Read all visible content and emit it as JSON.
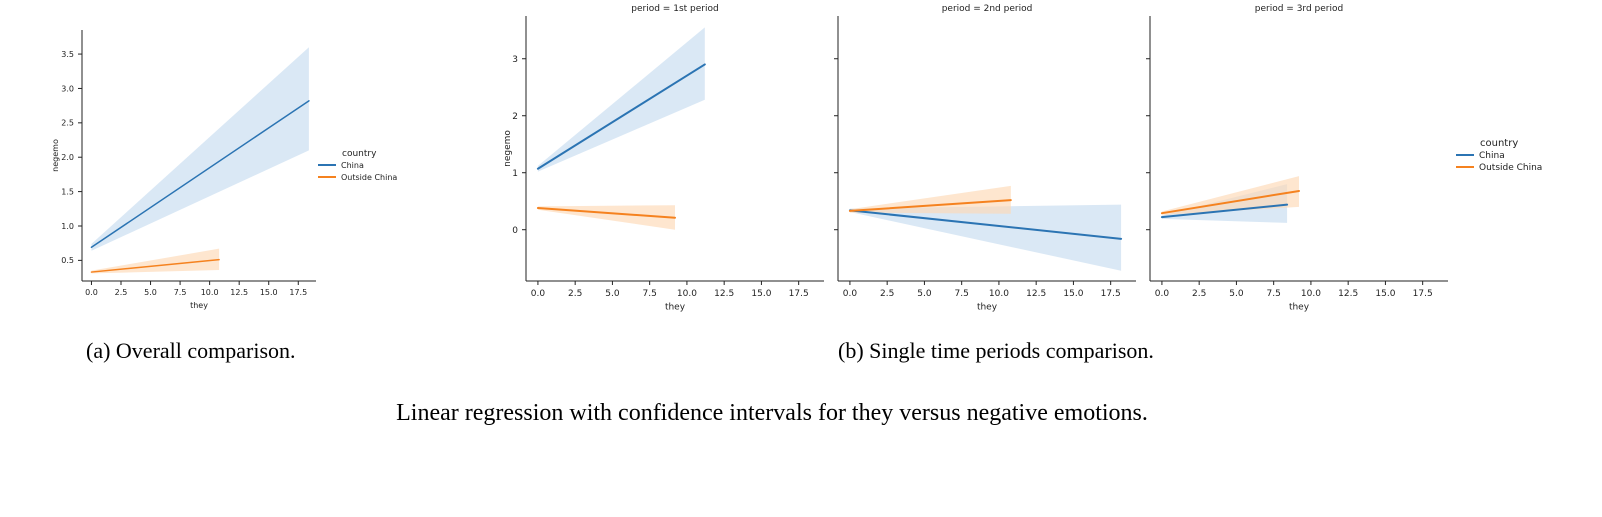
{
  "colors": {
    "china": "#2b74b3",
    "outside": "#f5821f",
    "china_band": "#c6dbef",
    "outside_band": "#fdd9b5"
  },
  "chart_data": [
    {
      "type": "line",
      "panel_id": "overall",
      "title": "",
      "xlabel": "they",
      "ylabel": "negemo",
      "xlim": [
        -0.8,
        19.0
      ],
      "ylim": [
        0.2,
        3.85
      ],
      "xticks": [
        0.0,
        2.5,
        5.0,
        7.5,
        10.0,
        12.5,
        15.0,
        17.5
      ],
      "xtick_labels": [
        "0.0",
        "2.5",
        "5.0",
        "7.5",
        "10.0",
        "12.5",
        "15.0",
        "17.5"
      ],
      "yticks": [
        0.5,
        1.0,
        1.5,
        2.0,
        2.5,
        3.0,
        3.5
      ],
      "ytick_labels": [
        "0.5",
        "1.0",
        "1.5",
        "2.0",
        "2.5",
        "3.0",
        "3.5"
      ],
      "legend": {
        "title": "country",
        "placement": "right",
        "entries": [
          "China",
          "Outside China"
        ]
      },
      "series": [
        {
          "name": "China",
          "x": [
            0.0,
            18.4
          ],
          "y": [
            0.69,
            2.82
          ],
          "ci_low": [
            0.64,
            2.1
          ],
          "ci_high": [
            0.74,
            3.6
          ]
        },
        {
          "name": "Outside China",
          "x": [
            0.0,
            10.8
          ],
          "y": [
            0.33,
            0.51
          ],
          "ci_low": [
            0.31,
            0.36
          ],
          "ci_high": [
            0.35,
            0.67
          ]
        }
      ]
    },
    {
      "type": "line",
      "panel_id": "p1",
      "title": "period = 1st period",
      "xlabel": "they",
      "ylabel": "negemo",
      "xlim": [
        -0.8,
        19.2
      ],
      "ylim": [
        -0.9,
        3.75
      ],
      "xticks": [
        0.0,
        2.5,
        5.0,
        7.5,
        10.0,
        12.5,
        15.0,
        17.5
      ],
      "xtick_labels": [
        "0.0",
        "2.5",
        "5.0",
        "7.5",
        "10.0",
        "12.5",
        "15.0",
        "17.5"
      ],
      "yticks": [
        0,
        1,
        2,
        3
      ],
      "ytick_labels": [
        "0",
        "1",
        "2",
        "3"
      ],
      "series": [
        {
          "name": "China",
          "x": [
            0.0,
            11.2
          ],
          "y": [
            1.07,
            2.9
          ],
          "ci_low": [
            1.02,
            2.28
          ],
          "ci_high": [
            1.12,
            3.55
          ]
        },
        {
          "name": "Outside China",
          "x": [
            0.0,
            9.2
          ],
          "y": [
            0.38,
            0.21
          ],
          "ci_low": [
            0.35,
            0.0
          ],
          "ci_high": [
            0.41,
            0.43
          ]
        }
      ]
    },
    {
      "type": "line",
      "panel_id": "p2",
      "title": "period = 2nd period",
      "xlabel": "they",
      "ylabel": "",
      "xlim": [
        -0.8,
        19.2
      ],
      "ylim": [
        -0.9,
        3.75
      ],
      "xticks": [
        0.0,
        2.5,
        5.0,
        7.5,
        10.0,
        12.5,
        15.0,
        17.5
      ],
      "xtick_labels": [
        "0.0",
        "2.5",
        "5.0",
        "7.5",
        "10.0",
        "12.5",
        "15.0",
        "17.5"
      ],
      "yticks": [
        0,
        1,
        2,
        3
      ],
      "ytick_labels": [],
      "series": [
        {
          "name": "China",
          "x": [
            0.0,
            18.2
          ],
          "y": [
            0.34,
            -0.16
          ],
          "ci_low": [
            0.31,
            -0.72
          ],
          "ci_high": [
            0.37,
            0.44
          ]
        },
        {
          "name": "Outside China",
          "x": [
            0.0,
            10.8
          ],
          "y": [
            0.33,
            0.52
          ],
          "ci_low": [
            0.3,
            0.28
          ],
          "ci_high": [
            0.36,
            0.77
          ]
        }
      ]
    },
    {
      "type": "line",
      "panel_id": "p3",
      "title": "period = 3rd period",
      "xlabel": "they",
      "ylabel": "",
      "xlim": [
        -0.8,
        19.2
      ],
      "ylim": [
        -0.9,
        3.75
      ],
      "xticks": [
        0.0,
        2.5,
        5.0,
        7.5,
        10.0,
        12.5,
        15.0,
        17.5
      ],
      "xtick_labels": [
        "0.0",
        "2.5",
        "5.0",
        "7.5",
        "10.0",
        "12.5",
        "15.0",
        "17.5"
      ],
      "yticks": [
        0,
        1,
        2,
        3
      ],
      "ytick_labels": [],
      "legend": {
        "title": "country",
        "placement": "right",
        "entries": [
          "China",
          "Outside China"
        ]
      },
      "series": [
        {
          "name": "China",
          "x": [
            0.0,
            8.4
          ],
          "y": [
            0.22,
            0.44
          ],
          "ci_low": [
            0.19,
            0.12
          ],
          "ci_high": [
            0.25,
            0.8
          ]
        },
        {
          "name": "Outside China",
          "x": [
            0.0,
            9.2
          ],
          "y": [
            0.29,
            0.68
          ],
          "ci_low": [
            0.26,
            0.4
          ],
          "ci_high": [
            0.32,
            0.94
          ]
        }
      ]
    }
  ],
  "captions": {
    "sub_a": "(a) Overall comparison.",
    "sub_b": "(b) Single time periods comparison.",
    "main": "Linear regression with confidence intervals for they versus negative emotions."
  }
}
